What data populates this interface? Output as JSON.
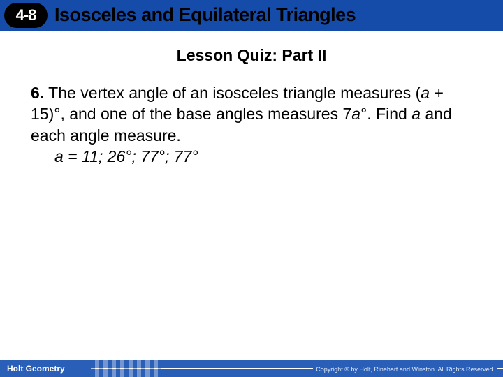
{
  "header": {
    "lesson_number": "4-8",
    "title": "Isosceles and Equilateral Triangles",
    "badge_bg": "#000000",
    "badge_fg": "#ffffff",
    "bar_bg": "#154ba9",
    "title_color": "#000000"
  },
  "subtitle": "Lesson Quiz: Part II",
  "question": {
    "number": "6.",
    "text_parts": [
      "The vertex angle of an isosceles triangle measures (",
      " + 15)°, and one of the base angles measures 7",
      "°. Find ",
      " and each angle measure."
    ],
    "italic_var": "a",
    "answer": "a = 11; 26°; 77°; 77°"
  },
  "footer": {
    "brand": "Holt Geometry",
    "copyright": "Copyright © by Holt, Rinehart and Winston. All Rights Reserved.",
    "bar_bg": "#2a5fb8",
    "brand_color": "#ffffff"
  },
  "colors": {
    "page_bg": "#ffffff",
    "text": "#000000"
  },
  "typography": {
    "header_title_size": 27,
    "subtitle_size": 23,
    "body_size": 23,
    "footer_brand_size": 12,
    "footer_copy_size": 9
  }
}
